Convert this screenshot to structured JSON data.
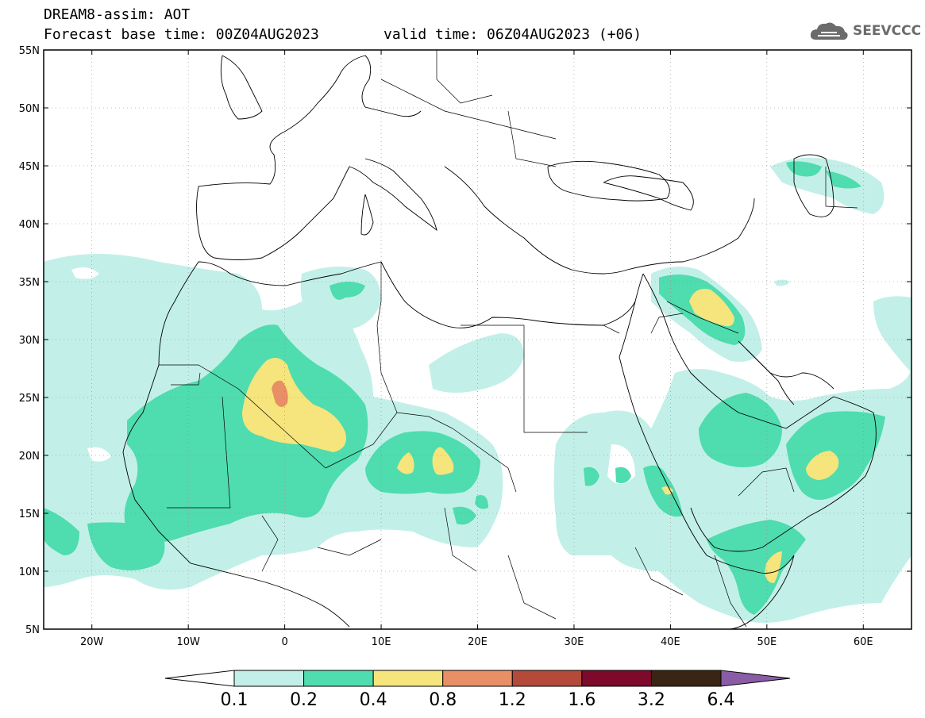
{
  "header": {
    "title": "DREAM8-assim: AOT",
    "base_time": "Forecast base time: 00Z04AUG2023",
    "valid_time": "valid time: 06Z04AUG2023 (+06)"
  },
  "logo": {
    "text": "SEEVCCC",
    "icon": "cloud-icon"
  },
  "axes": {
    "lat_labels": [
      "55N",
      "50N",
      "45N",
      "40N",
      "35N",
      "30N",
      "25N",
      "20N",
      "15N",
      "10N",
      "5N"
    ],
    "lon_labels": [
      "20W",
      "10W",
      "0",
      "10E",
      "20E",
      "30E",
      "40E",
      "50E",
      "60E"
    ],
    "lat_range": [
      5,
      55
    ],
    "lon_range": [
      -25,
      65
    ]
  },
  "colorbar": {
    "levels": [
      "0.1",
      "0.2",
      "0.4",
      "0.8",
      "1.2",
      "1.6",
      "3.2",
      "6.4"
    ],
    "colors": {
      "below": "#ffffff",
      "c1": "#c2f0e8",
      "c2": "#4fdcae",
      "c3": "#f5e57c",
      "c4": "#e88f66",
      "c5": "#b34a3a",
      "c6": "#7d0a2a",
      "c7": "#3a2414",
      "above": "#8a5ca6"
    }
  }
}
